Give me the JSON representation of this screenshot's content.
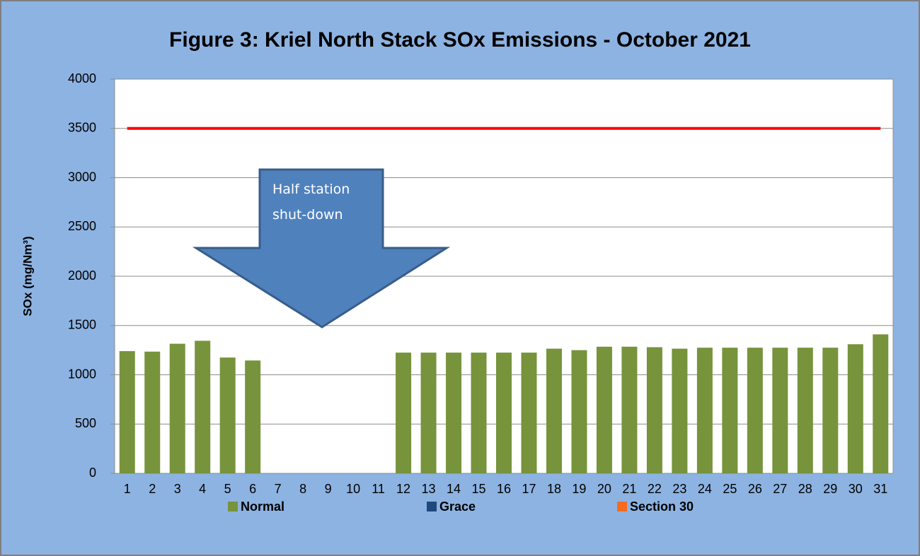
{
  "chart_data": {
    "type": "bar",
    "title": "Figure 3: Kriel North Stack SOx Emissions -  October 2021",
    "y_label": "SOx (mg/Nm³)",
    "categories": [
      "1",
      "2",
      "3",
      "4",
      "5",
      "6",
      "7",
      "8",
      "9",
      "10",
      "11",
      "12",
      "13",
      "14",
      "15",
      "16",
      "17",
      "18",
      "19",
      "20",
      "21",
      "22",
      "23",
      "24",
      "25",
      "26",
      "27",
      "28",
      "29",
      "30",
      "31"
    ],
    "series": [
      {
        "name": "Normal",
        "color": "#77933c",
        "values": [
          1240,
          1235,
          1315,
          1345,
          1175,
          1145,
          null,
          null,
          null,
          null,
          null,
          1225,
          1225,
          1225,
          1225,
          1225,
          1225,
          1265,
          1250,
          1285,
          1285,
          1280,
          1265,
          1275,
          1275,
          1275,
          1275,
          1275,
          1275,
          1310,
          1410
        ]
      },
      {
        "name": "Grace",
        "color": "#1f497d",
        "values": [
          null,
          null,
          null,
          null,
          null,
          null,
          null,
          null,
          null,
          null,
          null,
          null,
          null,
          null,
          null,
          null,
          null,
          null,
          null,
          null,
          null,
          null,
          null,
          null,
          null,
          null,
          null,
          null,
          null,
          null,
          null
        ]
      },
      {
        "name": "Section 30",
        "color": "#f36c21",
        "values": [
          null,
          null,
          null,
          null,
          null,
          null,
          null,
          null,
          null,
          null,
          null,
          null,
          null,
          null,
          null,
          null,
          null,
          null,
          null,
          null,
          null,
          null,
          null,
          null,
          null,
          null,
          null,
          null,
          null,
          null,
          null
        ]
      }
    ],
    "limit_line": {
      "value": 3500,
      "color": "#ff0000"
    },
    "annotation": "Half station shut-down",
    "ylim": [
      0,
      4000
    ],
    "yticks": [
      0,
      500,
      1000,
      1500,
      2000,
      2500,
      3000,
      3500,
      4000
    ],
    "grid": true
  }
}
